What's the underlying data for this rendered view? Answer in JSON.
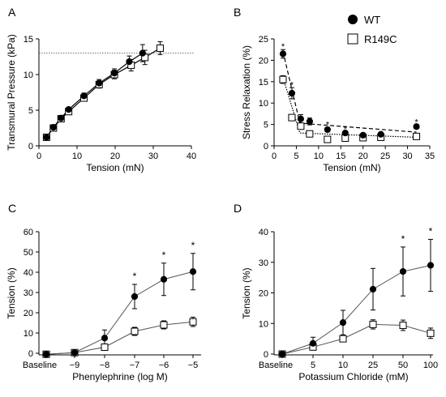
{
  "chart_data": [
    {
      "panel": "A",
      "type": "scatter",
      "xlabel": "Tension (mN)",
      "ylabel": "Transmural Pressure (kPa)",
      "xlim": [
        0,
        40
      ],
      "ylim": [
        0,
        15
      ],
      "xticks": [
        "0",
        "10",
        "20",
        "30",
        "40"
      ],
      "yticks": [
        "0",
        "5",
        "10",
        "15"
      ],
      "reference_line_y": 13,
      "series": [
        {
          "id": "wt",
          "marker": "filled-circle",
          "x": [
            2,
            3.8,
            5.8,
            7.8,
            11.8,
            15.8,
            19.8,
            23.7,
            27.2
          ],
          "y": [
            1.2,
            2.6,
            3.9,
            5.1,
            7.0,
            8.8,
            10.2,
            11.8,
            13.0
          ],
          "err": [
            0.2,
            0.2,
            0.2,
            0.3,
            0.4,
            0.5,
            0.6,
            0.8,
            1.2
          ]
        },
        {
          "id": "r149c",
          "marker": "open-square",
          "x": [
            2,
            3.8,
            5.8,
            7.8,
            11.8,
            15.8,
            19.8,
            24.2,
            27.8,
            31.8
          ],
          "y": [
            1.2,
            2.5,
            3.8,
            4.8,
            6.7,
            8.6,
            10.0,
            11.3,
            12.4,
            13.7
          ],
          "err": [
            0.2,
            0.2,
            0.2,
            0.3,
            0.4,
            0.5,
            0.6,
            0.8,
            1.0,
            0.9
          ]
        }
      ]
    },
    {
      "panel": "B",
      "type": "scatter",
      "xlabel": "Tension (mN)",
      "ylabel": "Stress Relaxation (%)",
      "xlim": [
        0,
        35
      ],
      "ylim": [
        0,
        25
      ],
      "xticks": [
        "0",
        "5",
        "10",
        "15",
        "20",
        "25",
        "30",
        "35"
      ],
      "yticks": [
        "0",
        "5",
        "10",
        "15",
        "20",
        "25"
      ],
      "legend": {
        "position": "top-right",
        "entries": [
          {
            "label": "WT",
            "marker": "filled-circle"
          },
          {
            "label": "R149C",
            "marker": "open-square"
          }
        ]
      },
      "series": [
        {
          "id": "wt",
          "marker": "filled-circle",
          "x": [
            2,
            4,
            6,
            8,
            12,
            16,
            20,
            24,
            32
          ],
          "y": [
            21.5,
            12.3,
            6.3,
            5.7,
            3.8,
            3.0,
            2.5,
            2.7,
            4.5
          ],
          "err": [
            1.0,
            1.3,
            1.0,
            0.8,
            0.5,
            0.4,
            0.4,
            0.4,
            0.5
          ],
          "fit": [
            [
              2,
              22.0
            ],
            [
              5.8,
              5.3
            ],
            [
              32,
              3.2
            ]
          ]
        },
        {
          "id": "r149c",
          "marker": "open-square",
          "x": [
            2,
            4,
            6,
            8,
            12,
            16,
            20,
            24,
            32
          ],
          "y": [
            15.5,
            6.6,
            4.6,
            2.8,
            1.5,
            1.8,
            1.9,
            2.0,
            2.2
          ],
          "err": [
            0.9,
            0.7,
            0.6,
            0.4,
            0.3,
            0.3,
            0.3,
            0.3,
            0.4
          ],
          "fit": [
            [
              2,
              16.0
            ],
            [
              5.8,
              3.0
            ],
            [
              32,
              2.0
            ]
          ]
        }
      ],
      "significance": [
        {
          "x": 2,
          "y": 23.3
        },
        {
          "x": 4,
          "y": 14.3
        },
        {
          "x": 12,
          "y": 5.0
        },
        {
          "x": 16,
          "y": 4.0
        },
        {
          "x": 32,
          "y": 5.6
        }
      ],
      "significance_label": "*"
    },
    {
      "panel": "C",
      "type": "line",
      "xlabel": "Phenylephrine (log M)",
      "ylabel": "Tension (%)",
      "categories": [
        "Baseline",
        "−9",
        "−8",
        "−7",
        "−6",
        "−5"
      ],
      "ylim": [
        -2,
        60
      ],
      "yticks": [
        "0",
        "10",
        "20",
        "30",
        "40",
        "50",
        "60"
      ],
      "series": [
        {
          "id": "wt",
          "marker": "filled-circle",
          "values": [
            -0.5,
            0.3,
            7.5,
            28.0,
            36.5,
            40.3
          ],
          "err": [
            1.0,
            1.5,
            4.0,
            6.0,
            8.0,
            9.0
          ]
        },
        {
          "id": "r149c",
          "marker": "open-square",
          "values": [
            -0.5,
            0.3,
            3.0,
            10.8,
            14.0,
            15.5
          ],
          "err": [
            1.0,
            1.5,
            1.5,
            2.0,
            2.0,
            2.3
          ]
        }
      ],
      "significance": [
        3,
        4,
        5
      ],
      "significance_label": "*"
    },
    {
      "panel": "D",
      "type": "line",
      "xlabel": "Potassium Chloride (mM)",
      "ylabel": "Tension (%)",
      "categories": [
        "Baseline",
        "5",
        "10",
        "25",
        "50",
        "100"
      ],
      "ylim": [
        -1,
        40
      ],
      "yticks": [
        "0",
        "10",
        "20",
        "30",
        "40"
      ],
      "series": [
        {
          "id": "wt",
          "marker": "filled-circle",
          "values": [
            0,
            3.5,
            10.3,
            21.2,
            27.0,
            29.0
          ],
          "err": [
            0.6,
            2.0,
            4.0,
            6.8,
            8.0,
            8.5
          ]
        },
        {
          "id": "r149c",
          "marker": "open-square",
          "values": [
            0,
            2.3,
            5.0,
            9.7,
            9.4,
            6.8
          ],
          "err": [
            0.6,
            1.0,
            1.0,
            1.5,
            1.7,
            1.7
          ]
        }
      ],
      "significance": [
        4,
        5
      ],
      "significance_label": "*"
    }
  ]
}
